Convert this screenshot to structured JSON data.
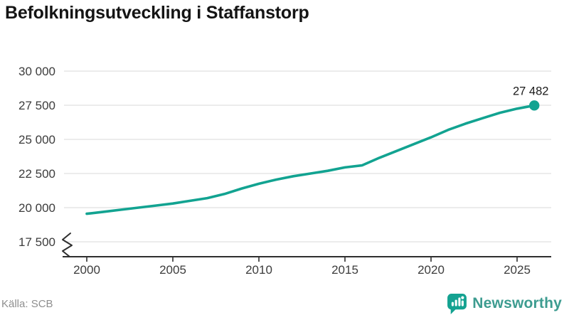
{
  "title": "Befolkningsutveckling i Staffanstorp",
  "footer": {
    "source": "Källa: SCB",
    "brand": "Newsworthy",
    "brand_icon": "newsworthy-bar-chart-bubble-icon"
  },
  "colors": {
    "line": "#12a391",
    "marker": "#12a391",
    "grid": "#e1e1e1",
    "axis": "#2e2e2e",
    "tick_text": "#3c3c3c",
    "annotation_text": "#1a1a1a",
    "title_text": "#141414",
    "muted_text": "#8f8f8f",
    "brand_teal": "#14a291"
  },
  "chart_data": {
    "type": "line",
    "title": "Befolkningsutveckling i Staffanstorp",
    "xlabel": "",
    "ylabel": "",
    "grid": "horizontal",
    "legend": "none",
    "axis_break": true,
    "xlim": [
      2000,
      2026
    ],
    "ylim": [
      17500,
      30000
    ],
    "x": [
      2000,
      2001,
      2002,
      2003,
      2004,
      2005,
      2006,
      2007,
      2008,
      2009,
      2010,
      2011,
      2012,
      2013,
      2014,
      2015,
      2016,
      2017,
      2018,
      2019,
      2020,
      2021,
      2022,
      2023,
      2024,
      2025,
      2026
    ],
    "series": [
      {
        "name": "Befolkning",
        "values": [
          19550,
          19700,
          19850,
          20000,
          20150,
          20300,
          20500,
          20700,
          21000,
          21400,
          21750,
          22050,
          22300,
          22500,
          22700,
          22950,
          23100,
          23650,
          24150,
          24650,
          25150,
          25700,
          26150,
          26550,
          26950,
          27250,
          27482
        ]
      }
    ],
    "end_value": 27482,
    "end_label": "27 482",
    "xticks": [
      2000,
      2005,
      2010,
      2015,
      2020,
      2025
    ],
    "xtick_labels": [
      "2000",
      "2005",
      "2010",
      "2015",
      "2020",
      "2025"
    ],
    "yticks": [
      30000,
      27500,
      25000,
      22500,
      20000,
      17500
    ],
    "ytick_labels": [
      "30 000",
      "27 500",
      "25 000",
      "22 500",
      "20 000",
      "17 500"
    ]
  }
}
